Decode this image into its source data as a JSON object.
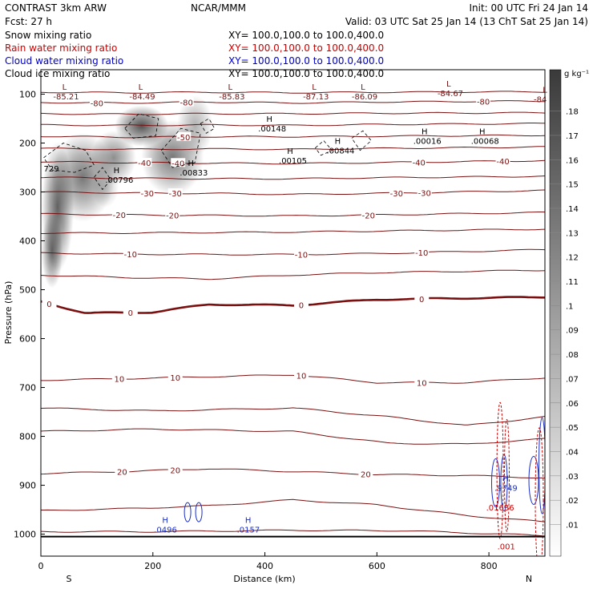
{
  "header": {
    "left1": "CONTRAST   3km ARW",
    "left2": "Fcst:    27 h",
    "center": "NCAR/MMM",
    "init": "Init: 00 UTC Fri 24 Jan 14",
    "valid": "Valid: 03 UTC Sat 25 Jan 14 (13 ChT Sat 25 Jan 14)"
  },
  "fields": [
    {
      "label": "Snow mixing ratio",
      "xy": "XY=  100.0,100.0  to  100.0,400.0",
      "color": "#000000"
    },
    {
      "label": "Rain water mixing ratio",
      "xy": "XY=  100.0,100.0  to  100.0,400.0",
      "color": "#cc0000"
    },
    {
      "label": "Cloud water mixing ratio",
      "xy": "XY=  100.0,100.0  to  100.0,400.0",
      "color": "#0000cc"
    },
    {
      "label": "Cloud ice mixing ratio",
      "xy": "XY=  100.0,100.0  to  100.0,400.0",
      "color": "#000000"
    }
  ],
  "colors": {
    "isotherm": "#7a1010",
    "snow": "#555555",
    "cloud_water": "#1a2fc8",
    "rain": "#cc0000",
    "cloud_ice": "#000000"
  },
  "chart_data": {
    "type": "heatmap",
    "xlabel": "Distance (km)",
    "ylabel": "Pressure (hPa)",
    "xlim": [
      0,
      900
    ],
    "ylim": [
      1045,
      50
    ],
    "x_ticks": [
      0,
      200,
      400,
      600,
      800
    ],
    "y_ticks": [
      100,
      200,
      300,
      400,
      500,
      600,
      700,
      800,
      900,
      1000
    ],
    "endpoints": {
      "left": "S",
      "right": "N"
    },
    "colorbar": {
      "unit": "g kg⁻¹",
      "levels": [
        ".01",
        ".02",
        ".03",
        ".04",
        ".05",
        ".06",
        ".07",
        ".08",
        ".09",
        ".1",
        ".11",
        ".12",
        ".13",
        ".14",
        ".15",
        ".16",
        ".17",
        ".18"
      ]
    },
    "snow_cells": [
      {
        "x": 30,
        "p": 330,
        "sx": 18,
        "sp": 95,
        "v": 0.14
      },
      {
        "x": 75,
        "p": 270,
        "sx": 35,
        "sp": 65,
        "v": 0.12
      },
      {
        "x": 130,
        "p": 230,
        "sx": 25,
        "sp": 40,
        "v": 0.1
      },
      {
        "x": 180,
        "p": 165,
        "sx": 30,
        "sp": 30,
        "v": 0.17
      },
      {
        "x": 235,
        "p": 230,
        "sx": 35,
        "sp": 55,
        "v": 0.12
      },
      {
        "x": 275,
        "p": 165,
        "sx": 20,
        "sp": 45,
        "v": 0.07
      },
      {
        "x": 20,
        "p": 420,
        "sx": 12,
        "sp": 55,
        "v": 0.13
      },
      {
        "x": 115,
        "p": 290,
        "sx": 15,
        "sp": 30,
        "v": 0.05
      }
    ],
    "isotherms": [
      {
        "label": "-80",
        "points": [
          [
            0,
            117
          ],
          [
            150,
            118
          ],
          [
            300,
            116
          ],
          [
            450,
            118
          ],
          [
            600,
            116
          ],
          [
            900,
            114
          ]
        ],
        "label_x": [
          100,
          260,
          790
        ]
      },
      {
        "label": "-50",
        "points": [
          [
            0,
            186
          ],
          [
            150,
            188
          ],
          [
            300,
            187
          ],
          [
            450,
            187
          ],
          [
            600,
            186
          ],
          [
            900,
            184
          ]
        ],
        "label_x": [
          255
        ]
      },
      {
        "label": "-40",
        "points": [
          [
            0,
            238
          ],
          [
            150,
            240
          ],
          [
            300,
            241
          ],
          [
            450,
            242
          ],
          [
            600,
            240
          ],
          [
            900,
            236
          ]
        ],
        "label_x": [
          185,
          245,
          675,
          825
        ]
      },
      {
        "label": "-30",
        "points": [
          [
            0,
            300
          ],
          [
            150,
            302
          ],
          [
            300,
            303
          ],
          [
            450,
            305
          ],
          [
            600,
            303
          ],
          [
            900,
            297
          ]
        ],
        "label_x": [
          190,
          240,
          635,
          685
        ]
      },
      {
        "label": "-20",
        "points": [
          [
            0,
            345
          ],
          [
            150,
            347
          ],
          [
            300,
            348
          ],
          [
            450,
            349
          ],
          [
            600,
            347
          ],
          [
            900,
            342
          ]
        ],
        "label_x": [
          140,
          235,
          585
        ]
      },
      {
        "label": "-10",
        "points": [
          [
            0,
            425
          ],
          [
            150,
            427
          ],
          [
            300,
            428
          ],
          [
            450,
            428
          ],
          [
            600,
            426
          ],
          [
            900,
            418
          ]
        ],
        "label_x": [
          160,
          465,
          680
        ]
      },
      {
        "label": "0",
        "points": [
          [
            0,
            524
          ],
          [
            80,
            548
          ],
          [
            200,
            546
          ],
          [
            300,
            530
          ],
          [
            450,
            532
          ],
          [
            600,
            520
          ],
          [
            900,
            515
          ]
        ],
        "label_x": [
          15,
          160,
          465,
          680
        ]
      },
      {
        "label": "10",
        "points": [
          [
            0,
            685
          ],
          [
            150,
            682
          ],
          [
            300,
            678
          ],
          [
            450,
            674
          ],
          [
            600,
            690
          ],
          [
            760,
            690
          ],
          [
            900,
            680
          ]
        ],
        "label_x": [
          140,
          240,
          465,
          680
        ]
      },
      {
        "label": "20",
        "points": [
          [
            0,
            876
          ],
          [
            150,
            872
          ],
          [
            300,
            866
          ],
          [
            450,
            872
          ],
          [
            600,
            878
          ],
          [
            760,
            880
          ],
          [
            900,
            885
          ]
        ],
        "label_x": [
          145,
          240,
          580
        ]
      },
      {
        "label": "",
        "points": [
          [
            0,
            742
          ],
          [
            200,
            748
          ],
          [
            450,
            742
          ],
          [
            620,
            760
          ],
          [
            760,
            778
          ],
          [
            900,
            760
          ]
        ],
        "label_x": []
      },
      {
        "label": "",
        "points": [
          [
            0,
            790
          ],
          [
            200,
            785
          ],
          [
            450,
            790
          ],
          [
            620,
            814
          ],
          [
            760,
            816
          ],
          [
            900,
            805
          ]
        ],
        "label_x": []
      },
      {
        "label": "",
        "points": [
          [
            0,
            952
          ],
          [
            150,
            948
          ],
          [
            300,
            942
          ],
          [
            450,
            930
          ],
          [
            600,
            940
          ],
          [
            760,
            962
          ],
          [
            900,
            975
          ]
        ],
        "label_x": []
      },
      {
        "label": "",
        "points": [
          [
            0,
            995
          ],
          [
            200,
            995
          ],
          [
            450,
            992
          ],
          [
            650,
            993
          ],
          [
            900,
            1003
          ]
        ],
        "label_x": []
      },
      {
        "label": "",
        "points": [
          [
            0,
            470
          ],
          [
            150,
            475
          ],
          [
            300,
            478
          ],
          [
            450,
            470
          ],
          [
            600,
            465
          ],
          [
            900,
            460
          ]
        ],
        "label_x": []
      },
      {
        "label": "",
        "points": [
          [
            0,
            384
          ],
          [
            150,
            384
          ],
          [
            300,
            383
          ],
          [
            450,
            382
          ],
          [
            600,
            380
          ],
          [
            900,
            376
          ]
        ],
        "label_x": []
      },
      {
        "label": "",
        "points": [
          [
            0,
            270
          ],
          [
            150,
            272
          ],
          [
            300,
            273
          ],
          [
            450,
            273
          ],
          [
            600,
            271
          ],
          [
            900,
            268
          ]
        ],
        "label_x": []
      },
      {
        "label": "",
        "points": [
          [
            0,
            211
          ],
          [
            150,
            213
          ],
          [
            300,
            212
          ],
          [
            450,
            213
          ],
          [
            600,
            211
          ],
          [
            900,
            208
          ]
        ],
        "label_x": []
      },
      {
        "label": "",
        "points": [
          [
            0,
            163
          ],
          [
            150,
            164
          ],
          [
            300,
            163
          ],
          [
            450,
            164
          ],
          [
            600,
            162
          ],
          [
            900,
            160
          ]
        ],
        "label_x": []
      },
      {
        "label": "",
        "points": [
          [
            0,
            140
          ],
          [
            150,
            141
          ],
          [
            300,
            140
          ],
          [
            450,
            140
          ],
          [
            600,
            139
          ],
          [
            900,
            138
          ]
        ],
        "label_x": []
      },
      {
        "label": "",
        "points": [
          [
            0,
            96
          ],
          [
            150,
            97
          ],
          [
            300,
            96
          ],
          [
            450,
            97
          ],
          [
            600,
            96
          ],
          [
            900,
            95
          ]
        ],
        "label_x": []
      }
    ],
    "extrema": [
      {
        "mark": "L",
        "value": "-85.21",
        "x": 22,
        "p": 94,
        "color": "#7a1010"
      },
      {
        "mark": "L",
        "value": "-84.49",
        "x": 158,
        "p": 94,
        "color": "#7a1010"
      },
      {
        "mark": "L",
        "value": "-85.83",
        "x": 318,
        "p": 94,
        "color": "#7a1010"
      },
      {
        "mark": "L",
        "value": "-87.13",
        "x": 468,
        "p": 94,
        "color": "#7a1010"
      },
      {
        "mark": "L",
        "value": "-86.09",
        "x": 555,
        "p": 94,
        "color": "#7a1010"
      },
      {
        "mark": "L",
        "value": "-84.67",
        "x": 708,
        "p": 88,
        "color": "#7a1010"
      },
      {
        "mark": "L",
        "value": "-84",
        "x": 880,
        "p": 100,
        "color": "#7a1010"
      },
      {
        "mark": "H",
        "value": ".00148",
        "x": 388,
        "p": 160,
        "color": "#000000"
      },
      {
        "mark": "H",
        "value": ".00844",
        "x": 510,
        "p": 205,
        "color": "#000000"
      },
      {
        "mark": "H",
        "value": ".00105",
        "x": 425,
        "p": 225,
        "color": "#000000"
      },
      {
        "mark": "H",
        "value": ".00016",
        "x": 665,
        "p": 185,
        "color": "#000000"
      },
      {
        "mark": "H",
        "value": ".00068",
        "x": 768,
        "p": 185,
        "color": "#000000"
      },
      {
        "mark": "H",
        "value": ".00796",
        "x": 115,
        "p": 265,
        "color": "#000000"
      },
      {
        "mark": "H",
        "value": ".00833",
        "x": 248,
        "p": 250,
        "color": "#000000"
      },
      {
        "mark": "",
        "value": "729",
        "x": 5,
        "p": 242,
        "color": "#000000"
      },
      {
        "mark": "H",
        "value": ".0496",
        "x": 202,
        "p": 980,
        "color": "#1a2fc8"
      },
      {
        "mark": "H",
        "value": ".0157",
        "x": 350,
        "p": 980,
        "color": "#1a2fc8"
      },
      {
        "mark": "H",
        "value": ".9749",
        "x": 810,
        "p": 895,
        "color": "#1a2fc8"
      },
      {
        "mark": "",
        "value": ".01636",
        "x": 795,
        "p": 935,
        "color": "#cc0000"
      },
      {
        "mark": "",
        "value": ".001",
        "x": 815,
        "p": 1015,
        "color": "#cc0000"
      }
    ]
  }
}
